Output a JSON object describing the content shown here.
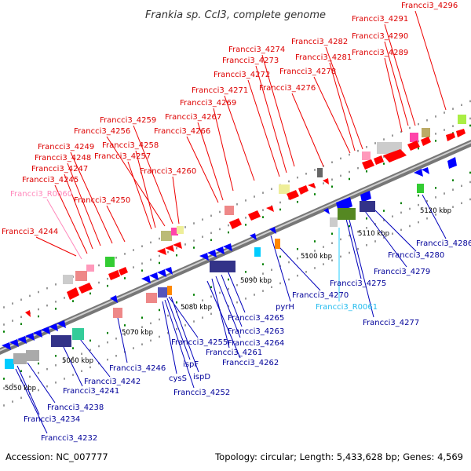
{
  "title": "Frankia sp. CcI3, complete genome",
  "footer": {
    "accession": "Accession: NC_007777",
    "topology": "Topology: circular; Length: 5,433,628 bp; Genes: 4,569"
  },
  "colors": {
    "forward": "#ff0000",
    "reverse": "#0000ff",
    "rna": "#ff99cc",
    "rna_rev": "#00ccff",
    "backbone": "#999999",
    "ticks": "#008000"
  },
  "scale_labels": [
    "5050 kbp",
    "5060 kbp",
    "5070 kbp",
    "5080 kbp",
    "5090 kbp",
    "5100 kbp",
    "5110 kbp",
    "5120 kbp"
  ],
  "forward_labels": [
    "Francci3_4296",
    "Francci3_4291",
    "Francci3_4290",
    "Francci3_4289",
    "Francci3_4282",
    "Francci3_4281",
    "Francci3_4278",
    "Francci3_4276",
    "Francci3_4274",
    "Francci3_4273",
    "Francci3_4272",
    "Francci3_4271",
    "Francci3_4269",
    "Francci3_4267",
    "Francci3_4266",
    "Francci3_4259",
    "Francci3_4256",
    "Francci3_4258",
    "Francci3_4257",
    "Francci3_4260",
    "Francci3_4249",
    "Francci3_4248",
    "Francci3_4247",
    "Francci3_4245",
    "Francci3_R0060",
    "Francci3_4250",
    "Francci3_4244"
  ],
  "reverse_labels": [
    "Francci3_4286",
    "Francci3_4280",
    "Francci3_4279",
    "Francci3_4275",
    "Francci3_R0061",
    "Francci3_4277",
    "Francci3_4270",
    "pyrH",
    "Francci3_4265",
    "Francci3_4263",
    "Francci3_4264",
    "Francci3_4261",
    "Francci3_4262",
    "Francci3_4255",
    "ispF",
    "cysS",
    "ispD",
    "Francci3_4252",
    "Francci3_4246",
    "Francci3_4242",
    "Francci3_4241",
    "Francci3_4238",
    "Francci3_4234",
    "Francci3_4232"
  ]
}
